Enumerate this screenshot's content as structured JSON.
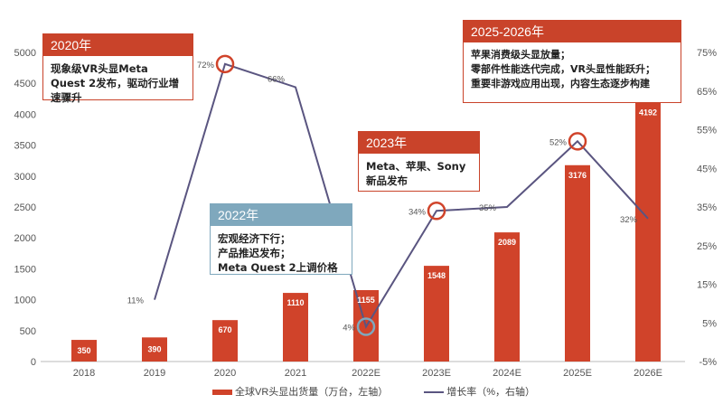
{
  "chart_data": {
    "type": "bar+line",
    "categories": [
      "2018",
      "2019",
      "2020",
      "2021",
      "2022E",
      "2023E",
      "2024E",
      "2025E",
      "2026E"
    ],
    "series": [
      {
        "name": "全球VR头显出货量（万台，左轴）",
        "type": "bar",
        "axis": "left",
        "values": [
          350,
          390,
          670,
          1110,
          1155,
          1548,
          2089,
          3176,
          4192
        ],
        "color": "#d0432a"
      },
      {
        "name": "增长率（%，右轴）",
        "type": "line",
        "axis": "right",
        "values": [
          null,
          11,
          72,
          66,
          4,
          34,
          35,
          52,
          32
        ],
        "color": "#5a5580"
      }
    ],
    "growth_labels": [
      "",
      "11%",
      "72%",
      "66%",
      "4%",
      "34%",
      "35%",
      "52%",
      "32%"
    ],
    "highlighted_points": [
      "2020",
      "2022E",
      "2023E",
      "2025E"
    ],
    "left_axis": {
      "range": [
        0,
        5000
      ],
      "ticks": [
        "0",
        "500",
        "1000",
        "1500",
        "2000",
        "2500",
        "3000",
        "3500",
        "4000",
        "4500",
        "5000"
      ]
    },
    "right_axis": {
      "range": [
        -5,
        75
      ],
      "ticks": [
        "-5%",
        "5%",
        "15%",
        "25%",
        "35%",
        "45%",
        "55%",
        "65%",
        "75%"
      ]
    },
    "legend_placement": "bottom"
  },
  "annotations": {
    "a2020": {
      "title": "2020年",
      "text": "现象级VR头显Meta Quest 2发布，驱动行业增速骤升"
    },
    "a2022": {
      "title": "2022年",
      "lines": [
        "宏观经济下行；",
        "产品推迟发布；",
        "Meta Quest 2上调价格"
      ]
    },
    "a2023": {
      "title": "2023年",
      "text": "Meta、苹果、Sony新品发布"
    },
    "a2025": {
      "title": "2025-2026年",
      "lines": [
        "苹果消费级头显放量；",
        "零部件性能迭代完成，VR头显性能跃升；",
        "重要非游戏应用出现，内容生态逐步构建"
      ]
    }
  },
  "legend": {
    "bar": "全球VR头显出货量（万台，左轴）",
    "line": "增长率（%，右轴）"
  }
}
